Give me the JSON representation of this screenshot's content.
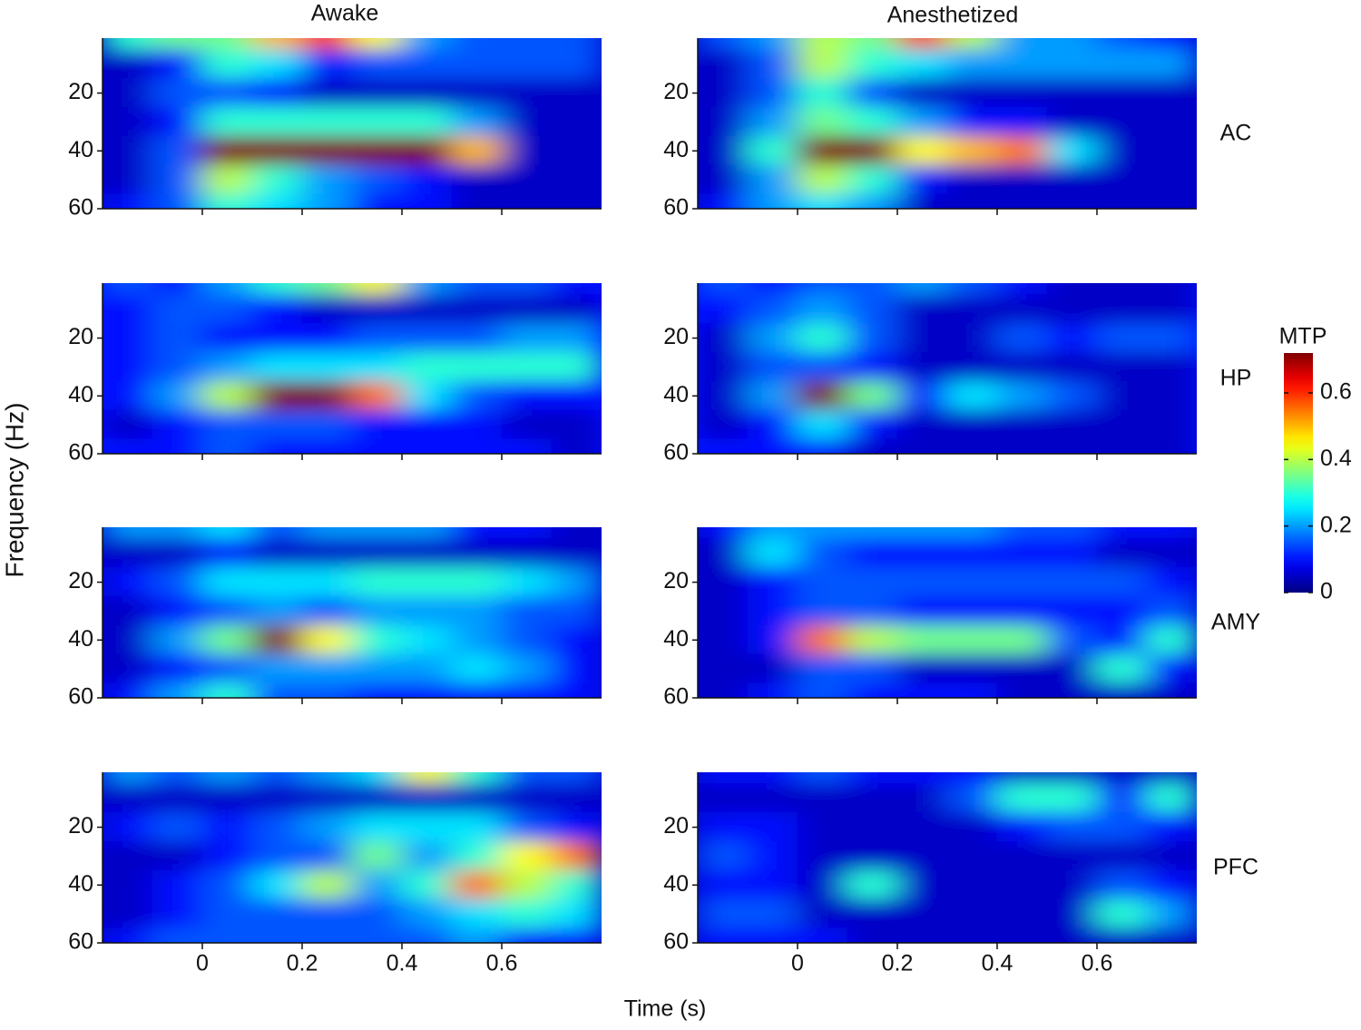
{
  "chart_data": {
    "type": "heatmap",
    "columns": [
      "Awake",
      "Anesthetized"
    ],
    "rows": [
      "AC",
      "HP",
      "AMY",
      "PFC"
    ],
    "xlabel": "Time (s)",
    "ylabel": "Frequency (Hz)",
    "x": [
      -0.15,
      -0.05,
      0.05,
      0.15,
      0.25,
      0.35,
      0.45,
      0.55,
      0.65,
      0.75
    ],
    "y": [
      0,
      10,
      20,
      30,
      40,
      50,
      60
    ],
    "xlim": [
      -0.2,
      0.8
    ],
    "xticks": [
      0,
      0.2,
      0.4,
      0.6
    ],
    "ylim": [
      1,
      60
    ],
    "yticks": [
      20,
      40,
      60
    ],
    "colormap": "jet",
    "colorbar_label": "MTP",
    "clim": [
      0,
      0.72
    ],
    "cticks": [
      0,
      0.2,
      0.4,
      0.6
    ],
    "z": [
      [
        [
          [
            0.3,
            0.35,
            0.35,
            0.5,
            0.6,
            0.45,
            0.2,
            0.15,
            0.15,
            0.15
          ],
          [
            0.05,
            0.1,
            0.3,
            0.25,
            0.1,
            0.15,
            0.15,
            0.15,
            0.15,
            0.15
          ],
          [
            0.05,
            0.15,
            0.15,
            0.1,
            0.05,
            0.05,
            0.05,
            0.05,
            0.05,
            0.05
          ],
          [
            0.05,
            0.1,
            0.3,
            0.3,
            0.3,
            0.3,
            0.3,
            0.2,
            0.05,
            0.05
          ],
          [
            0.05,
            0.15,
            0.72,
            0.72,
            0.72,
            0.72,
            0.72,
            0.5,
            0.05,
            0.05
          ],
          [
            0.05,
            0.15,
            0.4,
            0.3,
            0.2,
            0.15,
            0.1,
            0.05,
            0.05,
            0.05
          ],
          [
            0.1,
            0.15,
            0.3,
            0.25,
            0.2,
            0.1,
            0.1,
            0.05,
            0.05,
            0.05
          ]
        ],
        [
          [
            0.15,
            0.2,
            0.4,
            0.35,
            0.6,
            0.4,
            0.2,
            0.2,
            0.15,
            0.1
          ],
          [
            0.05,
            0.15,
            0.4,
            0.3,
            0.25,
            0.2,
            0.2,
            0.2,
            0.2,
            0.2
          ],
          [
            0.05,
            0.15,
            0.3,
            0.15,
            0.05,
            0.05,
            0.05,
            0.05,
            0.05,
            0.05
          ],
          [
            0.05,
            0.2,
            0.35,
            0.3,
            0.2,
            0.1,
            0.1,
            0.05,
            0.05,
            0.05
          ],
          [
            0.05,
            0.3,
            0.72,
            0.72,
            0.45,
            0.5,
            0.55,
            0.25,
            0.05,
            0.05
          ],
          [
            0.05,
            0.2,
            0.4,
            0.3,
            0.1,
            0.05,
            0.05,
            0.05,
            0.05,
            0.05
          ],
          [
            0.1,
            0.2,
            0.25,
            0.2,
            0.05,
            0.05,
            0.05,
            0.05,
            0.05,
            0.05
          ]
        ]
      ],
      [
        [
          [
            0.15,
            0.1,
            0.2,
            0.3,
            0.35,
            0.45,
            0.2,
            0.15,
            0.15,
            0.1
          ],
          [
            0.1,
            0.15,
            0.15,
            0.1,
            0.05,
            0.05,
            0.05,
            0.05,
            0.05,
            0.05
          ],
          [
            0.1,
            0.15,
            0.1,
            0.1,
            0.1,
            0.15,
            0.15,
            0.15,
            0.2,
            0.2
          ],
          [
            0.1,
            0.15,
            0.2,
            0.25,
            0.25,
            0.25,
            0.3,
            0.3,
            0.3,
            0.3
          ],
          [
            0.1,
            0.2,
            0.4,
            0.72,
            0.72,
            0.55,
            0.25,
            0.15,
            0.1,
            0.1
          ],
          [
            0.05,
            0.1,
            0.15,
            0.15,
            0.15,
            0.1,
            0.1,
            0.1,
            0.05,
            0.05
          ],
          [
            0.1,
            0.1,
            0.15,
            0.1,
            0.1,
            0.1,
            0.1,
            0.1,
            0.1,
            0.05
          ]
        ],
        [
          [
            0.15,
            0.1,
            0.15,
            0.15,
            0.2,
            0.15,
            0.1,
            0.05,
            0.05,
            0.05
          ],
          [
            0.1,
            0.15,
            0.2,
            0.15,
            0.05,
            0.05,
            0.05,
            0.05,
            0.05,
            0.05
          ],
          [
            0.05,
            0.2,
            0.3,
            0.15,
            0.05,
            0.05,
            0.15,
            0.1,
            0.15,
            0.15
          ],
          [
            0.05,
            0.15,
            0.15,
            0.1,
            0.05,
            0.05,
            0.05,
            0.05,
            0.05,
            0.05
          ],
          [
            0.05,
            0.2,
            0.72,
            0.35,
            0.1,
            0.25,
            0.2,
            0.15,
            0.05,
            0.05
          ],
          [
            0.05,
            0.1,
            0.25,
            0.1,
            0.05,
            0.05,
            0.05,
            0.05,
            0.05,
            0.05
          ],
          [
            0.1,
            0.1,
            0.1,
            0.05,
            0.05,
            0.05,
            0.05,
            0.05,
            0.05,
            0.05
          ]
        ]
      ],
      [
        [
          [
            0.2,
            0.2,
            0.25,
            0.15,
            0.2,
            0.2,
            0.2,
            0.1,
            0.1,
            0.05
          ],
          [
            0.05,
            0.05,
            0.1,
            0.05,
            0.05,
            0.05,
            0.05,
            0.05,
            0.05,
            0.05
          ],
          [
            0.1,
            0.15,
            0.25,
            0.25,
            0.25,
            0.3,
            0.3,
            0.3,
            0.25,
            0.2
          ],
          [
            0.05,
            0.1,
            0.15,
            0.2,
            0.15,
            0.2,
            0.2,
            0.2,
            0.15,
            0.15
          ],
          [
            0.05,
            0.2,
            0.35,
            0.72,
            0.45,
            0.3,
            0.25,
            0.2,
            0.15,
            0.1
          ],
          [
            0.05,
            0.1,
            0.15,
            0.2,
            0.2,
            0.2,
            0.2,
            0.25,
            0.2,
            0.1
          ],
          [
            0.1,
            0.2,
            0.3,
            0.15,
            0.15,
            0.1,
            0.1,
            0.1,
            0.1,
            0.1
          ]
        ],
        [
          [
            0.1,
            0.2,
            0.2,
            0.2,
            0.2,
            0.2,
            0.15,
            0.15,
            0.1,
            0.1
          ],
          [
            0.05,
            0.25,
            0.15,
            0.1,
            0.1,
            0.1,
            0.1,
            0.1,
            0.05,
            0.05
          ],
          [
            0.05,
            0.1,
            0.15,
            0.15,
            0.15,
            0.15,
            0.15,
            0.15,
            0.15,
            0.1
          ],
          [
            0.05,
            0.1,
            0.15,
            0.15,
            0.1,
            0.1,
            0.1,
            0.1,
            0.1,
            0.15
          ],
          [
            0.05,
            0.1,
            0.55,
            0.4,
            0.35,
            0.35,
            0.35,
            0.15,
            0.1,
            0.3
          ],
          [
            0.05,
            0.05,
            0.15,
            0.15,
            0.05,
            0.05,
            0.05,
            0.05,
            0.3,
            0.1
          ],
          [
            0.05,
            0.1,
            0.15,
            0.1,
            0.1,
            0.1,
            0.05,
            0.05,
            0.05,
            0.05
          ]
        ]
      ],
      [
        [
          [
            0.2,
            0.15,
            0.2,
            0.15,
            0.2,
            0.25,
            0.45,
            0.3,
            0.15,
            0.15
          ],
          [
            0.05,
            0.05,
            0.05,
            0.05,
            0.05,
            0.05,
            0.05,
            0.05,
            0.05,
            0.05
          ],
          [
            0.1,
            0.15,
            0.1,
            0.15,
            0.2,
            0.25,
            0.25,
            0.25,
            0.15,
            0.1
          ],
          [
            0.05,
            0.05,
            0.1,
            0.15,
            0.15,
            0.35,
            0.2,
            0.3,
            0.45,
            0.55
          ],
          [
            0.05,
            0.1,
            0.15,
            0.25,
            0.4,
            0.2,
            0.3,
            0.55,
            0.4,
            0.3
          ],
          [
            0.05,
            0.1,
            0.15,
            0.15,
            0.15,
            0.15,
            0.2,
            0.25,
            0.3,
            0.25
          ],
          [
            0.1,
            0.15,
            0.15,
            0.15,
            0.15,
            0.15,
            0.15,
            0.2,
            0.1,
            0.1
          ]
        ],
        [
          [
            0.1,
            0.1,
            0.15,
            0.1,
            0.1,
            0.1,
            0.05,
            0.05,
            0.05,
            0.05
          ],
          [
            0.05,
            0.05,
            0.05,
            0.05,
            0.05,
            0.15,
            0.3,
            0.3,
            0.1,
            0.3
          ],
          [
            0.1,
            0.1,
            0.05,
            0.05,
            0.05,
            0.05,
            0.1,
            0.15,
            0.15,
            0.1
          ],
          [
            0.15,
            0.1,
            0.05,
            0.05,
            0.05,
            0.05,
            0.05,
            0.05,
            0.05,
            0.05
          ],
          [
            0.1,
            0.1,
            0.05,
            0.3,
            0.05,
            0.05,
            0.05,
            0.05,
            0.15,
            0.1
          ],
          [
            0.15,
            0.15,
            0.05,
            0.05,
            0.05,
            0.05,
            0.05,
            0.05,
            0.3,
            0.2
          ],
          [
            0.1,
            0.1,
            0.1,
            0.05,
            0.05,
            0.05,
            0.05,
            0.05,
            0.05,
            0.05
          ]
        ]
      ]
    ]
  }
}
